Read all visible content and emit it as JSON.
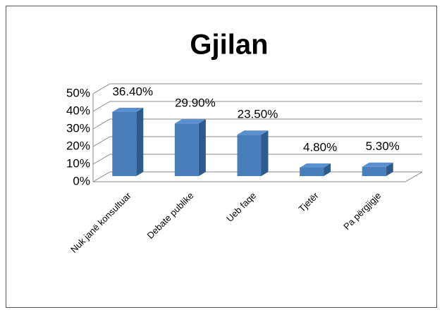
{
  "chart_data": {
    "type": "bar3d",
    "title": "Gjilan",
    "categories": [
      "Nuk janë konsultuar",
      "Debate publike",
      "Ueb faqe",
      "Tjetër",
      "Pa përgjigje"
    ],
    "values": [
      36.4,
      29.9,
      23.5,
      4.8,
      5.3
    ],
    "value_labels": [
      "36.40%",
      "29.90%",
      "23.50%",
      "4.80%",
      "5.30%"
    ],
    "color": "#4a7ebb",
    "ylim": [
      0,
      50
    ],
    "yticks": [
      {
        "value": 0,
        "label": "0%"
      },
      {
        "value": 10,
        "label": "10%"
      },
      {
        "value": 20,
        "label": "20%"
      },
      {
        "value": 30,
        "label": "30%"
      },
      {
        "value": 40,
        "label": "40%"
      },
      {
        "value": 50,
        "label": "50%"
      }
    ],
    "grid": true
  }
}
